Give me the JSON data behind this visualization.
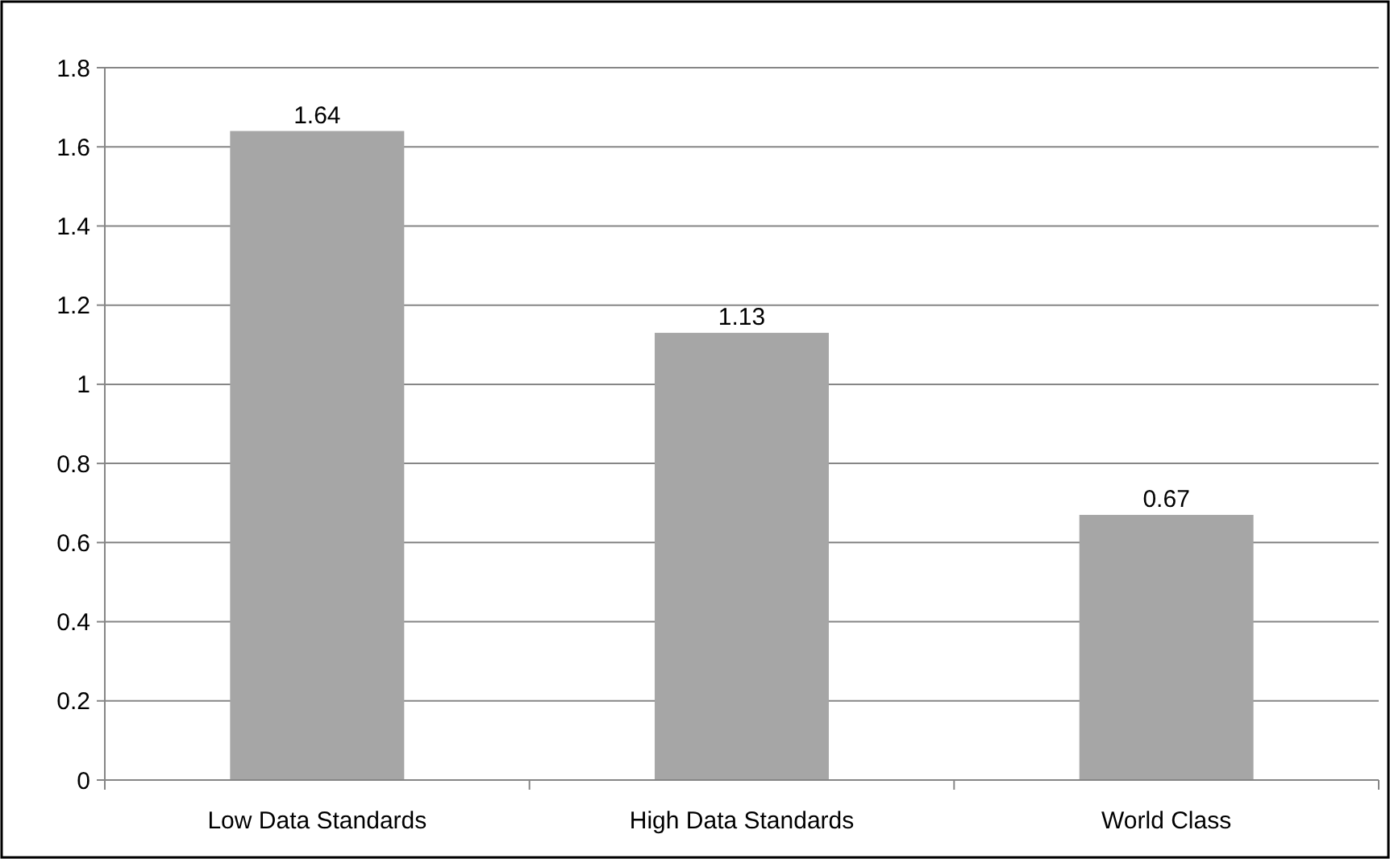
{
  "chart_data": {
    "type": "bar",
    "categories": [
      "Low Data Standards",
      "High Data Standards",
      "World Class"
    ],
    "values": [
      1.64,
      1.13,
      0.67
    ],
    "color": "#a6a6a6",
    "ylim": [
      0,
      1.8
    ],
    "yticks": [
      0,
      0.2,
      0.4,
      0.6,
      0.8,
      1,
      1.2,
      1.4,
      1.6,
      1.8
    ],
    "grid": "y",
    "data_labels": true
  }
}
